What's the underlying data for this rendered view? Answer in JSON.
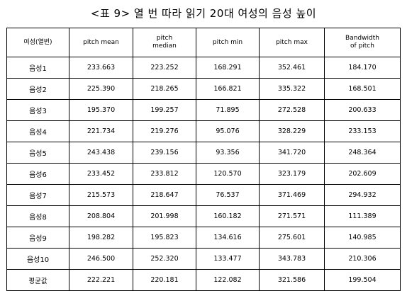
{
  "title": "<표 9> 열 번 따라 읽기 20대 여성의 음성 높이",
  "table": {
    "headers": [
      "여성(열번)",
      "pitch mean",
      "pitch\nmedian",
      "pitch min",
      "pitch max",
      "Bandwidth\nof pitch"
    ],
    "rows": [
      [
        "음성1",
        "233.663",
        "223.252",
        "168.291",
        "352.461",
        "184.170"
      ],
      [
        "음성2",
        "225.390",
        "218.265",
        "166.821",
        "335.322",
        "168.501"
      ],
      [
        "음성3",
        "195.370",
        "199.257",
        "71.895",
        "272.528",
        "200.633"
      ],
      [
        "음성4",
        "221.734",
        "219.276",
        "95.076",
        "328.229",
        "233.153"
      ],
      [
        "음성5",
        "243.438",
        "239.156",
        "93.356",
        "341.720",
        "248.364"
      ],
      [
        "음성6",
        "233.452",
        "233.812",
        "120.570",
        "323.179",
        "202.609"
      ],
      [
        "음성7",
        "215.573",
        "218.647",
        "76.537",
        "371.469",
        "294.932"
      ],
      [
        "음성8",
        "208.804",
        "201.998",
        "160.182",
        "271.571",
        "111.389"
      ],
      [
        "음성9",
        "198.282",
        "195.823",
        "134.616",
        "275.601",
        "140.985"
      ],
      [
        "음성10",
        "246.500",
        "252.320",
        "133.477",
        "343.783",
        "210.306"
      ],
      [
        "평균값",
        "222.221",
        "220.181",
        "122.082",
        "321.586",
        "199.504"
      ]
    ]
  }
}
